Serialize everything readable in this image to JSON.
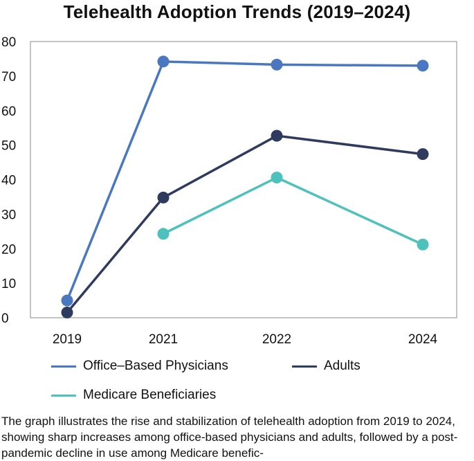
{
  "chart_data": {
    "type": "line",
    "title": "Telehealth Adoption Trends (2019–2024)",
    "categories": [
      "2019",
      "2021",
      "2022",
      "2024"
    ],
    "ylim": [
      0,
      80
    ],
    "yticks": [
      0,
      10,
      20,
      30,
      40,
      50,
      60,
      70,
      80
    ],
    "grid": false,
    "legend_position": "bottom",
    "series": [
      {
        "name": "Office–Based Physicians",
        "color": "#4a78c0",
        "values": [
          5,
          74.2,
          73.3,
          73
        ]
      },
      {
        "name": "Adults",
        "color": "#2f3a5f",
        "values": [
          1.5,
          34.8,
          52.7,
          47.4
        ]
      },
      {
        "name": "Medicare Beneficiaries",
        "color": "#4fc1bc",
        "values": [
          null,
          24.3,
          40.6,
          21.2
        ]
      }
    ]
  },
  "caption": "The graph illustrates the rise and stabilization of telehealth adoption from 2019 to 2024, showing sharp increases among office-based physicians and adults, followed by a post-pandemic decline in use among Medicare benefic-"
}
